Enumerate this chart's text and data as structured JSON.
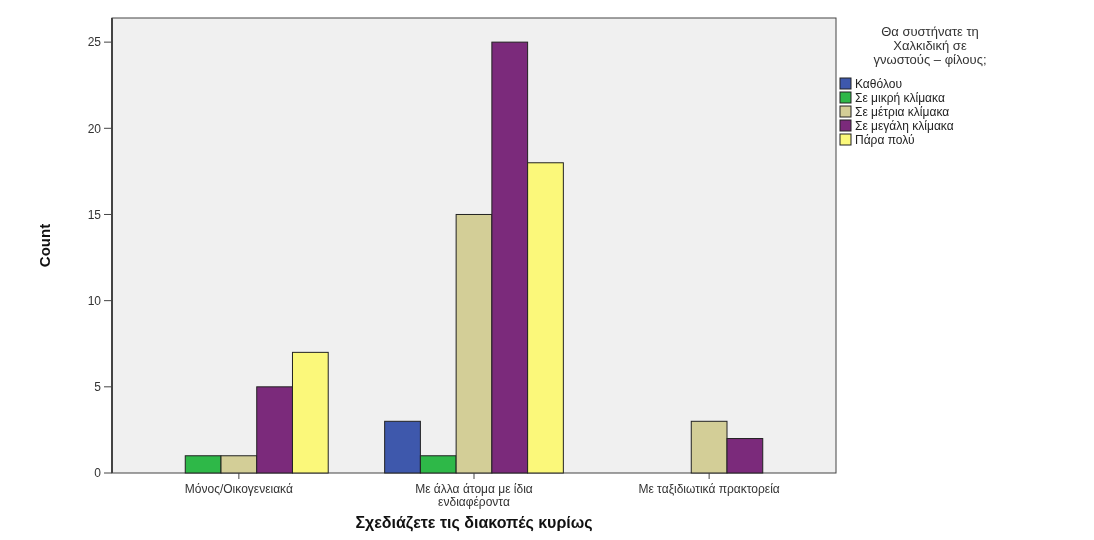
{
  "chart_data": {
    "type": "bar",
    "xlabel": "Σχεδιάζετε τις διακοπές κυρίως",
    "ylabel": "Count",
    "legend_title": "Θα συστήνατε τη Χαλκιδική σε γνωστούς – φίλους;",
    "categories": [
      "Μόνος/Οικογενειακά",
      "Με άλλα άτομα με ίδια ενδιαφέροντα",
      "Με ταξιδιωτικά πρακτορεία"
    ],
    "series": [
      {
        "name": "Καθόλου",
        "color": "#3e58ac",
        "values": [
          0,
          3,
          0
        ]
      },
      {
        "name": "Σε μικρή κλίμακα",
        "color": "#2eb848",
        "values": [
          1,
          1,
          0
        ]
      },
      {
        "name": "Σε μέτρια κλίμακα",
        "color": "#d3ce97",
        "values": [
          1,
          15,
          3
        ]
      },
      {
        "name": "Σε μεγάλη κλίμακα",
        "color": "#7b2a7b",
        "values": [
          5,
          25,
          2
        ]
      },
      {
        "name": "Πάρα πολύ",
        "color": "#fbf87a",
        "values": [
          7,
          18,
          0
        ]
      }
    ],
    "ylim": [
      0,
      26.4
    ],
    "yticks": [
      0,
      5,
      10,
      15,
      20,
      25
    ],
    "grid": false,
    "legend": "top right"
  }
}
